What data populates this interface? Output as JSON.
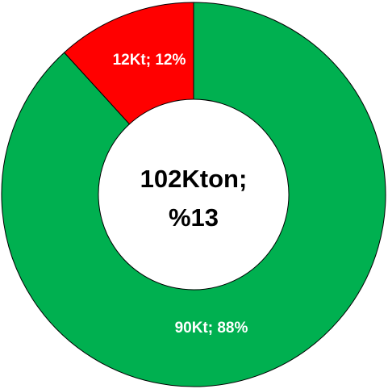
{
  "chart_data": {
    "type": "donut",
    "categories": [
      null,
      null
    ],
    "values": [
      90,
      12
    ],
    "value_labels": [
      "90Kt; 88%",
      "12Kt; 12%"
    ],
    "colors": [
      "#00b050",
      "#ff0000"
    ],
    "center_label": [
      "102Kton;",
      "%13"
    ]
  }
}
